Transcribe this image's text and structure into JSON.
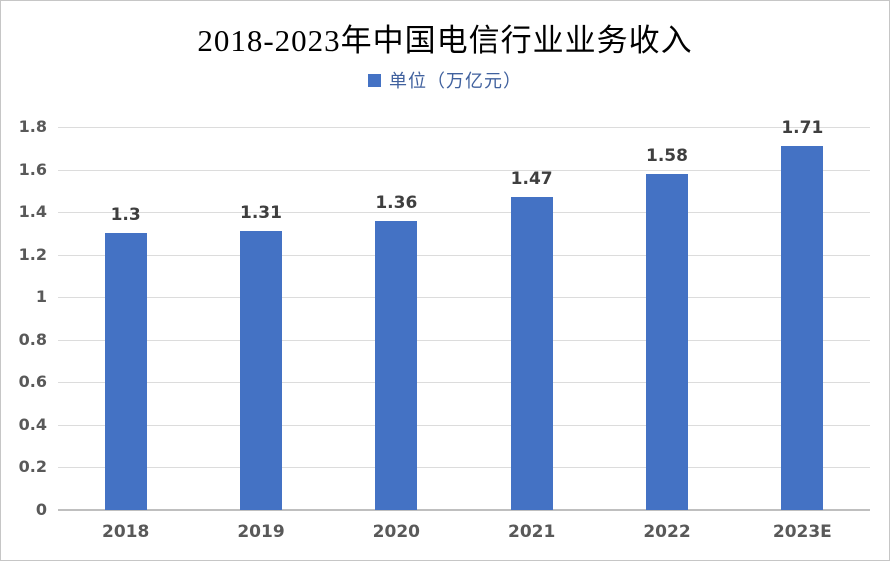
{
  "header": {
    "title": "2018-2023年中国电信行业业务收入"
  },
  "legend": {
    "label": "单位（万亿元）"
  },
  "colors": {
    "bar": "#4472c4",
    "legend_marker": "#4472c4",
    "legend_text": "#40619e",
    "grid": "#dcdcdc",
    "axis": "#bfbfbf",
    "value_label": "#3f3f3f",
    "tick_label": "#595959",
    "title_text": "#000000"
  },
  "chart_data": {
    "type": "bar",
    "title": "2018-2023年中国电信行业业务收入",
    "legend_entries": [
      "单位（万亿元）"
    ],
    "legend_position": "top",
    "categories": [
      "2018",
      "2019",
      "2020",
      "2021",
      "2022",
      "2023E"
    ],
    "values": [
      1.3,
      1.31,
      1.36,
      1.47,
      1.58,
      1.71
    ],
    "value_labels": [
      "1.3",
      "1.31",
      "1.36",
      "1.47",
      "1.58",
      "1.71"
    ],
    "xlabel": "",
    "ylabel": "",
    "ylim": [
      0,
      1.8
    ],
    "ytick_step": 0.2,
    "yticks": [
      "0",
      "0.2",
      "0.4",
      "0.6",
      "0.8",
      "1",
      "1.2",
      "1.4",
      "1.6",
      "1.8"
    ],
    "grid": true
  }
}
